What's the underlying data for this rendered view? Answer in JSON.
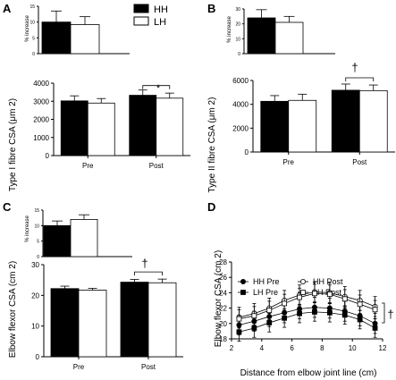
{
  "legend": {
    "HH": "HH",
    "LH": "LH"
  },
  "chart_data": [
    {
      "panel": "A",
      "type": "bar",
      "categories": [
        "Pre",
        "Post"
      ],
      "series": [
        {
          "name": "HH",
          "values": [
            3020,
            3330
          ],
          "errors": [
            280,
            290
          ]
        },
        {
          "name": "LH",
          "values": [
            2900,
            3170
          ],
          "errors": [
            250,
            280
          ]
        }
      ],
      "ylabel": "Type I fibre CSA (μm 2)",
      "ylim": [
        0,
        4000
      ],
      "yticks": [
        "0",
        "1000",
        "2000",
        "3000",
        "4000"
      ],
      "annotation": "*",
      "inset": {
        "type": "bar",
        "series": [
          {
            "name": "HH",
            "values": [
              10
            ],
            "errors": [
              3.5
            ]
          },
          {
            "name": "LH",
            "values": [
              9.2
            ],
            "errors": [
              2.5
            ]
          }
        ],
        "ylabel": "% increase",
        "ylim": [
          0,
          15
        ],
        "yticks": [
          "0",
          "5",
          "10",
          "15"
        ]
      }
    },
    {
      "panel": "B",
      "type": "bar",
      "categories": [
        "Pre",
        "Post"
      ],
      "series": [
        {
          "name": "HH",
          "values": [
            4250,
            5180
          ],
          "errors": [
            480,
            520
          ]
        },
        {
          "name": "LH",
          "values": [
            4330,
            5150
          ],
          "errors": [
            520,
            470
          ]
        }
      ],
      "ylabel": "Type II fibre CSA (μm 2)",
      "ylim": [
        0,
        6000
      ],
      "yticks": [
        "0",
        "2000",
        "4000",
        "6000"
      ],
      "annotation": "†",
      "inset": {
        "type": "bar",
        "series": [
          {
            "name": "HH",
            "values": [
              24
            ],
            "errors": [
              5.5
            ]
          },
          {
            "name": "LH",
            "values": [
              21
            ],
            "errors": [
              4
            ]
          }
        ],
        "ylabel": "% increase",
        "ylim": [
          0,
          30
        ],
        "yticks": [
          "0",
          "10",
          "20",
          "30"
        ]
      }
    },
    {
      "panel": "C",
      "type": "bar",
      "categories": [
        "Pre",
        "Post"
      ],
      "series": [
        {
          "name": "HH",
          "values": [
            22.2,
            24.3
          ],
          "errors": [
            0.8,
            0.9
          ]
        },
        {
          "name": "LH",
          "values": [
            21.7,
            24.1
          ],
          "errors": [
            0.6,
            1.2
          ]
        }
      ],
      "ylabel": "Elbow flexor CSA (cm 2)",
      "ylim": [
        0,
        30
      ],
      "yticks": [
        "0",
        "10",
        "20",
        "30"
      ],
      "annotation": "†",
      "inset": {
        "type": "bar",
        "series": [
          {
            "name": "HH",
            "values": [
              10
            ],
            "errors": [
              1.5
            ]
          },
          {
            "name": "LH",
            "values": [
              12
            ],
            "errors": [
              1.5
            ]
          }
        ],
        "ylabel": "% increase",
        "ylim": [
          0,
          15
        ],
        "yticks": [
          "0",
          "5",
          "10",
          "15"
        ]
      }
    },
    {
      "panel": "D",
      "type": "line",
      "x": [
        2.5,
        3.5,
        4.5,
        5.5,
        6.5,
        7.5,
        8.5,
        9.5,
        10.5,
        11.5
      ],
      "series": [
        {
          "name": "HH Pre",
          "marker": "filled-circle",
          "y": [
            19.8,
            20.3,
            20.9,
            21.4,
            21.9,
            22.1,
            22.0,
            21.6,
            21.0,
            20.0
          ],
          "errors": [
            1.3,
            1.3,
            1.3,
            1.3,
            1.3,
            1.3,
            1.3,
            1.3,
            1.3,
            1.3
          ]
        },
        {
          "name": "LH Pre",
          "marker": "filled-square",
          "y": [
            18.9,
            19.4,
            20.1,
            20.7,
            21.3,
            21.5,
            21.4,
            21.1,
            20.5,
            19.4
          ],
          "errors": [
            1.2,
            1.2,
            1.2,
            1.2,
            1.2,
            1.2,
            1.2,
            1.2,
            1.2,
            1.2
          ]
        },
        {
          "name": "HH Post",
          "marker": "open-circle",
          "y": [
            20.8,
            21.3,
            22.0,
            23.0,
            23.7,
            24.1,
            24.0,
            23.5,
            23.0,
            22.2
          ],
          "errors": [
            1.3,
            1.3,
            1.3,
            1.3,
            1.3,
            1.3,
            1.3,
            1.3,
            1.3,
            1.3
          ]
        },
        {
          "name": "LH Post",
          "marker": "open-square",
          "y": [
            20.6,
            21.0,
            21.7,
            22.6,
            23.4,
            23.9,
            23.8,
            23.2,
            22.5,
            21.8
          ],
          "errors": [
            1.2,
            1.2,
            1.2,
            1.2,
            1.2,
            1.2,
            1.2,
            1.2,
            1.2,
            1.2
          ]
        }
      ],
      "xlabel": "Distance from elbow joint line (cm)",
      "ylabel": "Elbow flexor CSA (cm 2)",
      "xlim": [
        2,
        12
      ],
      "ylim": [
        18,
        28
      ],
      "xticks": [
        "2",
        "4",
        "6",
        "8",
        "10",
        "12"
      ],
      "yticks": [
        "18",
        "20",
        "22",
        "24",
        "26",
        "28"
      ],
      "annotation": "†"
    }
  ]
}
